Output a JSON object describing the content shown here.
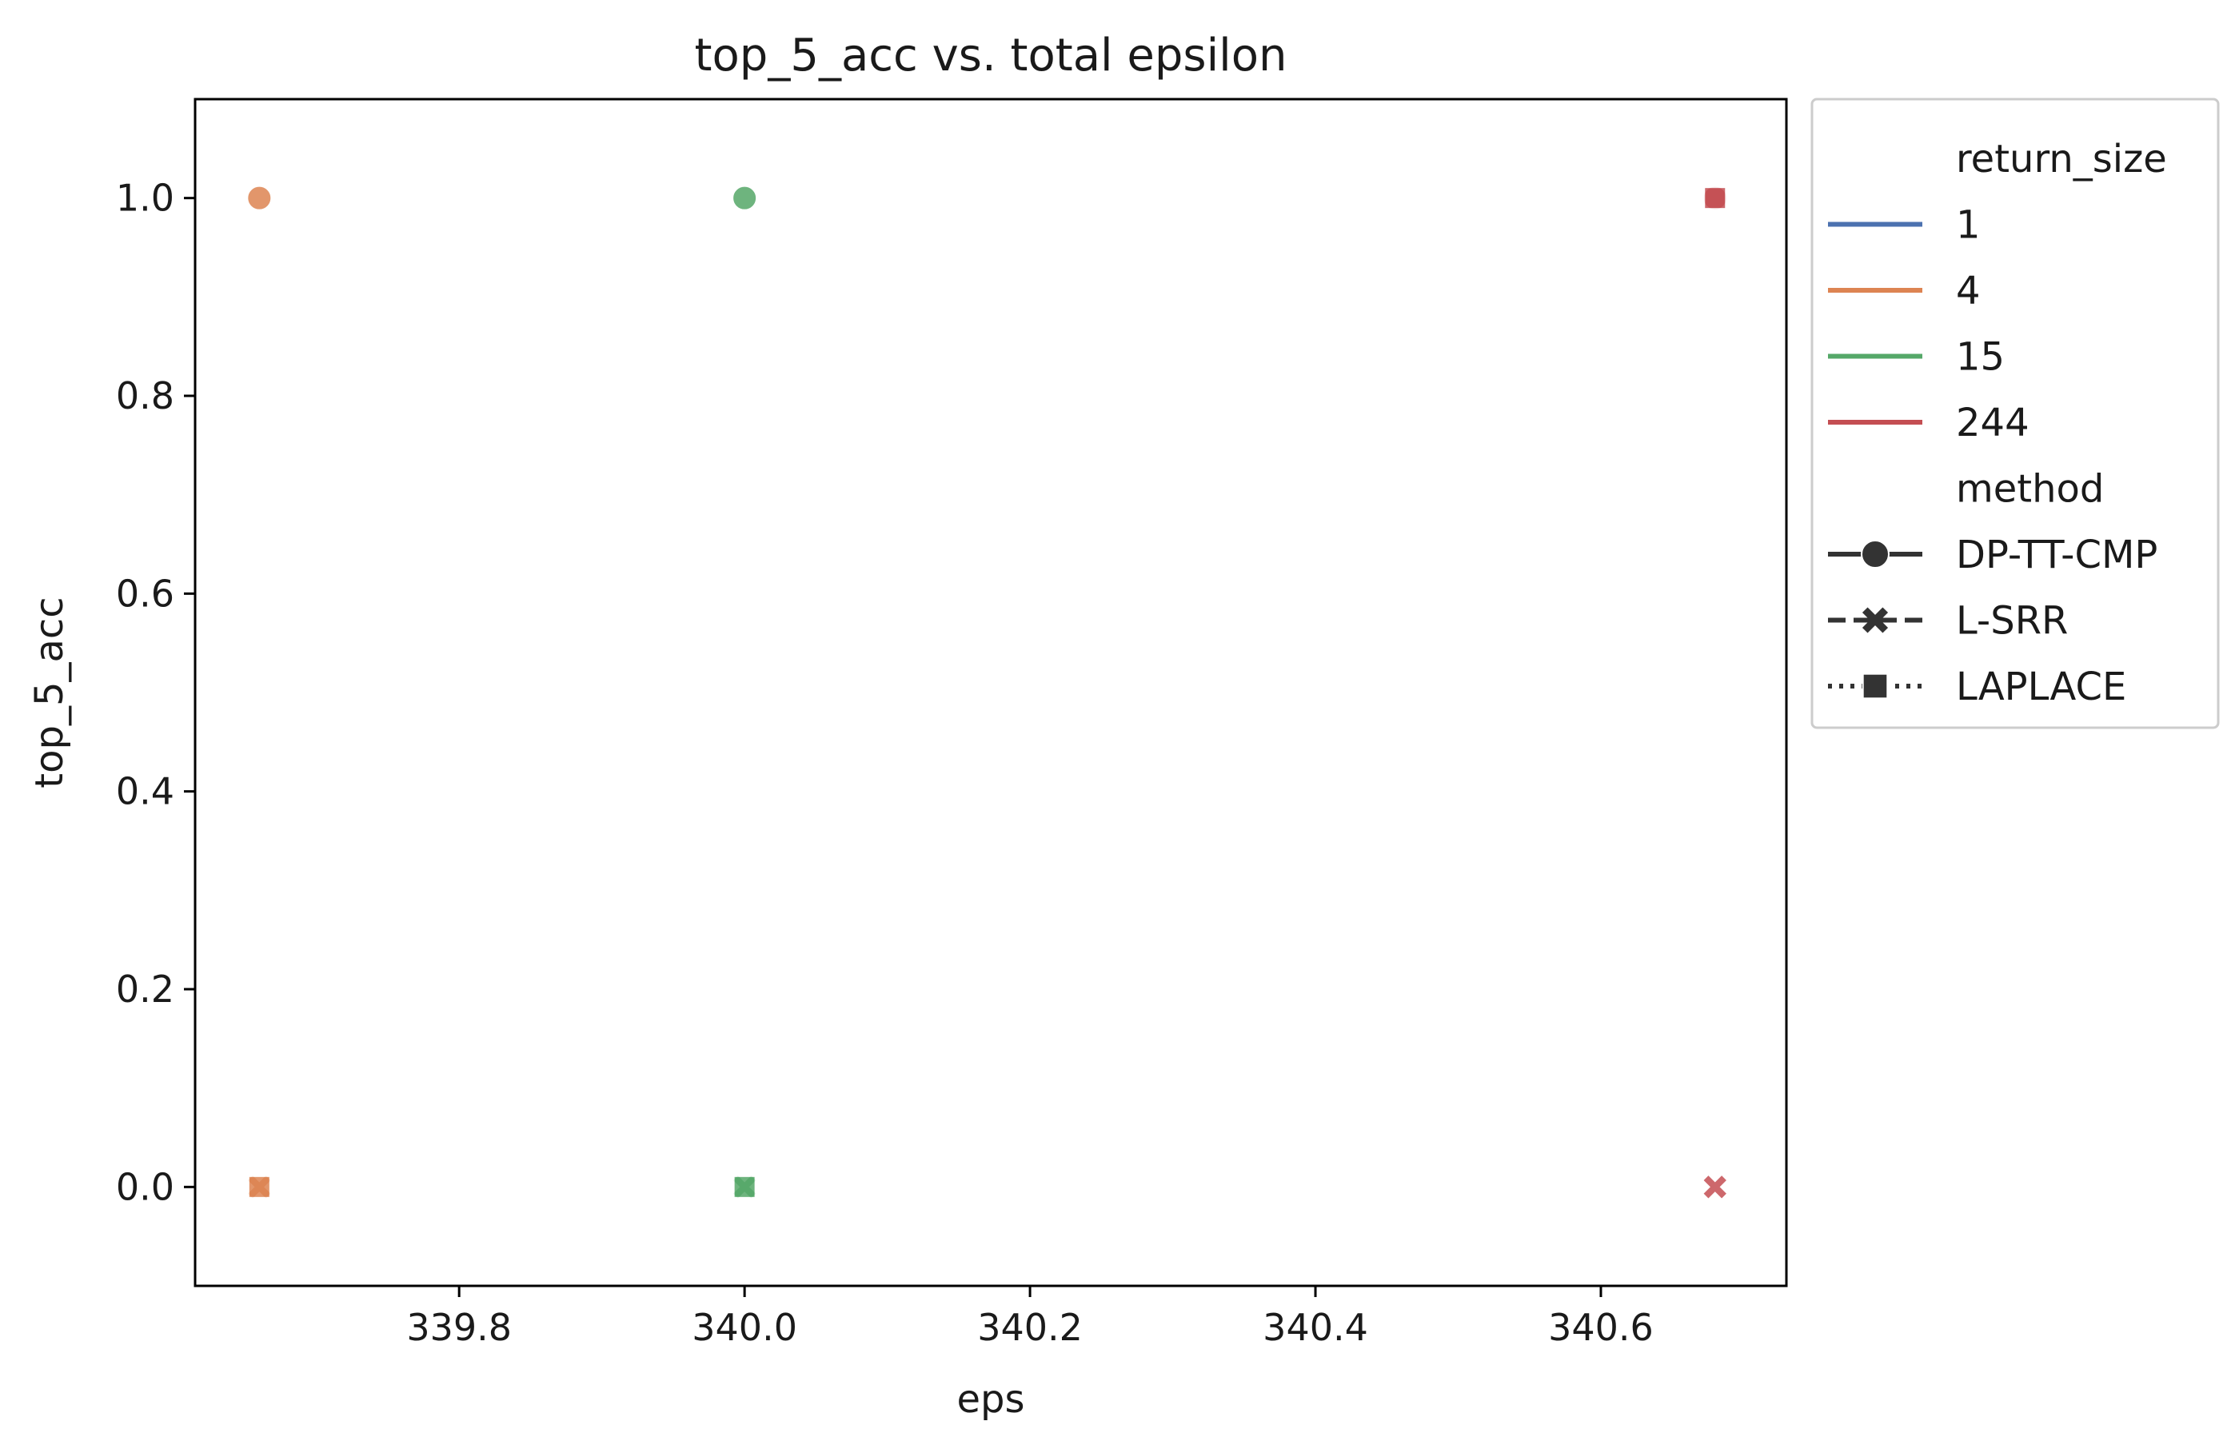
{
  "chart_data": {
    "type": "scatter",
    "title": "top_5_acc vs. total epsilon",
    "xlabel": "eps",
    "ylabel": "top_5_acc",
    "xlim": [
      339.615,
      340.73
    ],
    "ylim": [
      -0.1,
      1.1
    ],
    "x_ticks": [
      {
        "value": 339.8,
        "label": "339.8"
      },
      {
        "value": 340.0,
        "label": "340.0"
      },
      {
        "value": 340.2,
        "label": "340.2"
      },
      {
        "value": 340.4,
        "label": "340.4"
      },
      {
        "value": 340.6,
        "label": "340.6"
      }
    ],
    "y_ticks": [
      {
        "value": 0.0,
        "label": "0.0"
      },
      {
        "value": 0.2,
        "label": "0.2"
      },
      {
        "value": 0.4,
        "label": "0.4"
      },
      {
        "value": 0.6,
        "label": "0.6"
      },
      {
        "value": 0.8,
        "label": "0.8"
      },
      {
        "value": 1.0,
        "label": "1.0"
      }
    ],
    "grid": false,
    "legend": {
      "placement": "outside-top-right",
      "hue_title": "return_size",
      "hue_entries": [
        {
          "label": "1",
          "color": "#4c72b0"
        },
        {
          "label": "4",
          "color": "#dd8452"
        },
        {
          "label": "15",
          "color": "#55a868"
        },
        {
          "label": "244",
          "color": "#c44e52"
        }
      ],
      "style_title": "method",
      "style_entries": [
        {
          "label": "DP-TT-CMP",
          "marker": "circle",
          "dash": "solid"
        },
        {
          "label": "L-SRR",
          "marker": "x",
          "dash": "dashed"
        },
        {
          "label": "LAPLACE",
          "marker": "square",
          "dash": "dotted"
        }
      ]
    },
    "series": [
      {
        "return_size": "4",
        "method": "DP-TT-CMP",
        "points": [
          [
            339.66,
            1.0
          ]
        ]
      },
      {
        "return_size": "4",
        "method": "L-SRR",
        "points": [
          [
            339.66,
            0.0
          ]
        ]
      },
      {
        "return_size": "4",
        "method": "LAPLACE",
        "points": [
          [
            339.66,
            0.0
          ]
        ]
      },
      {
        "return_size": "15",
        "method": "DP-TT-CMP",
        "points": [
          [
            340.0,
            1.0
          ]
        ]
      },
      {
        "return_size": "15",
        "method": "L-SRR",
        "points": [
          [
            340.0,
            0.0
          ]
        ]
      },
      {
        "return_size": "15",
        "method": "LAPLACE",
        "points": [
          [
            340.0,
            0.0
          ]
        ]
      },
      {
        "return_size": "244",
        "method": "DP-TT-CMP",
        "points": [
          [
            340.68,
            1.0
          ]
        ]
      },
      {
        "return_size": "244",
        "method": "LAPLACE",
        "points": [
          [
            340.68,
            1.0
          ]
        ]
      },
      {
        "return_size": "244",
        "method": "L-SRR",
        "points": [
          [
            340.68,
            0.0
          ]
        ]
      }
    ]
  }
}
